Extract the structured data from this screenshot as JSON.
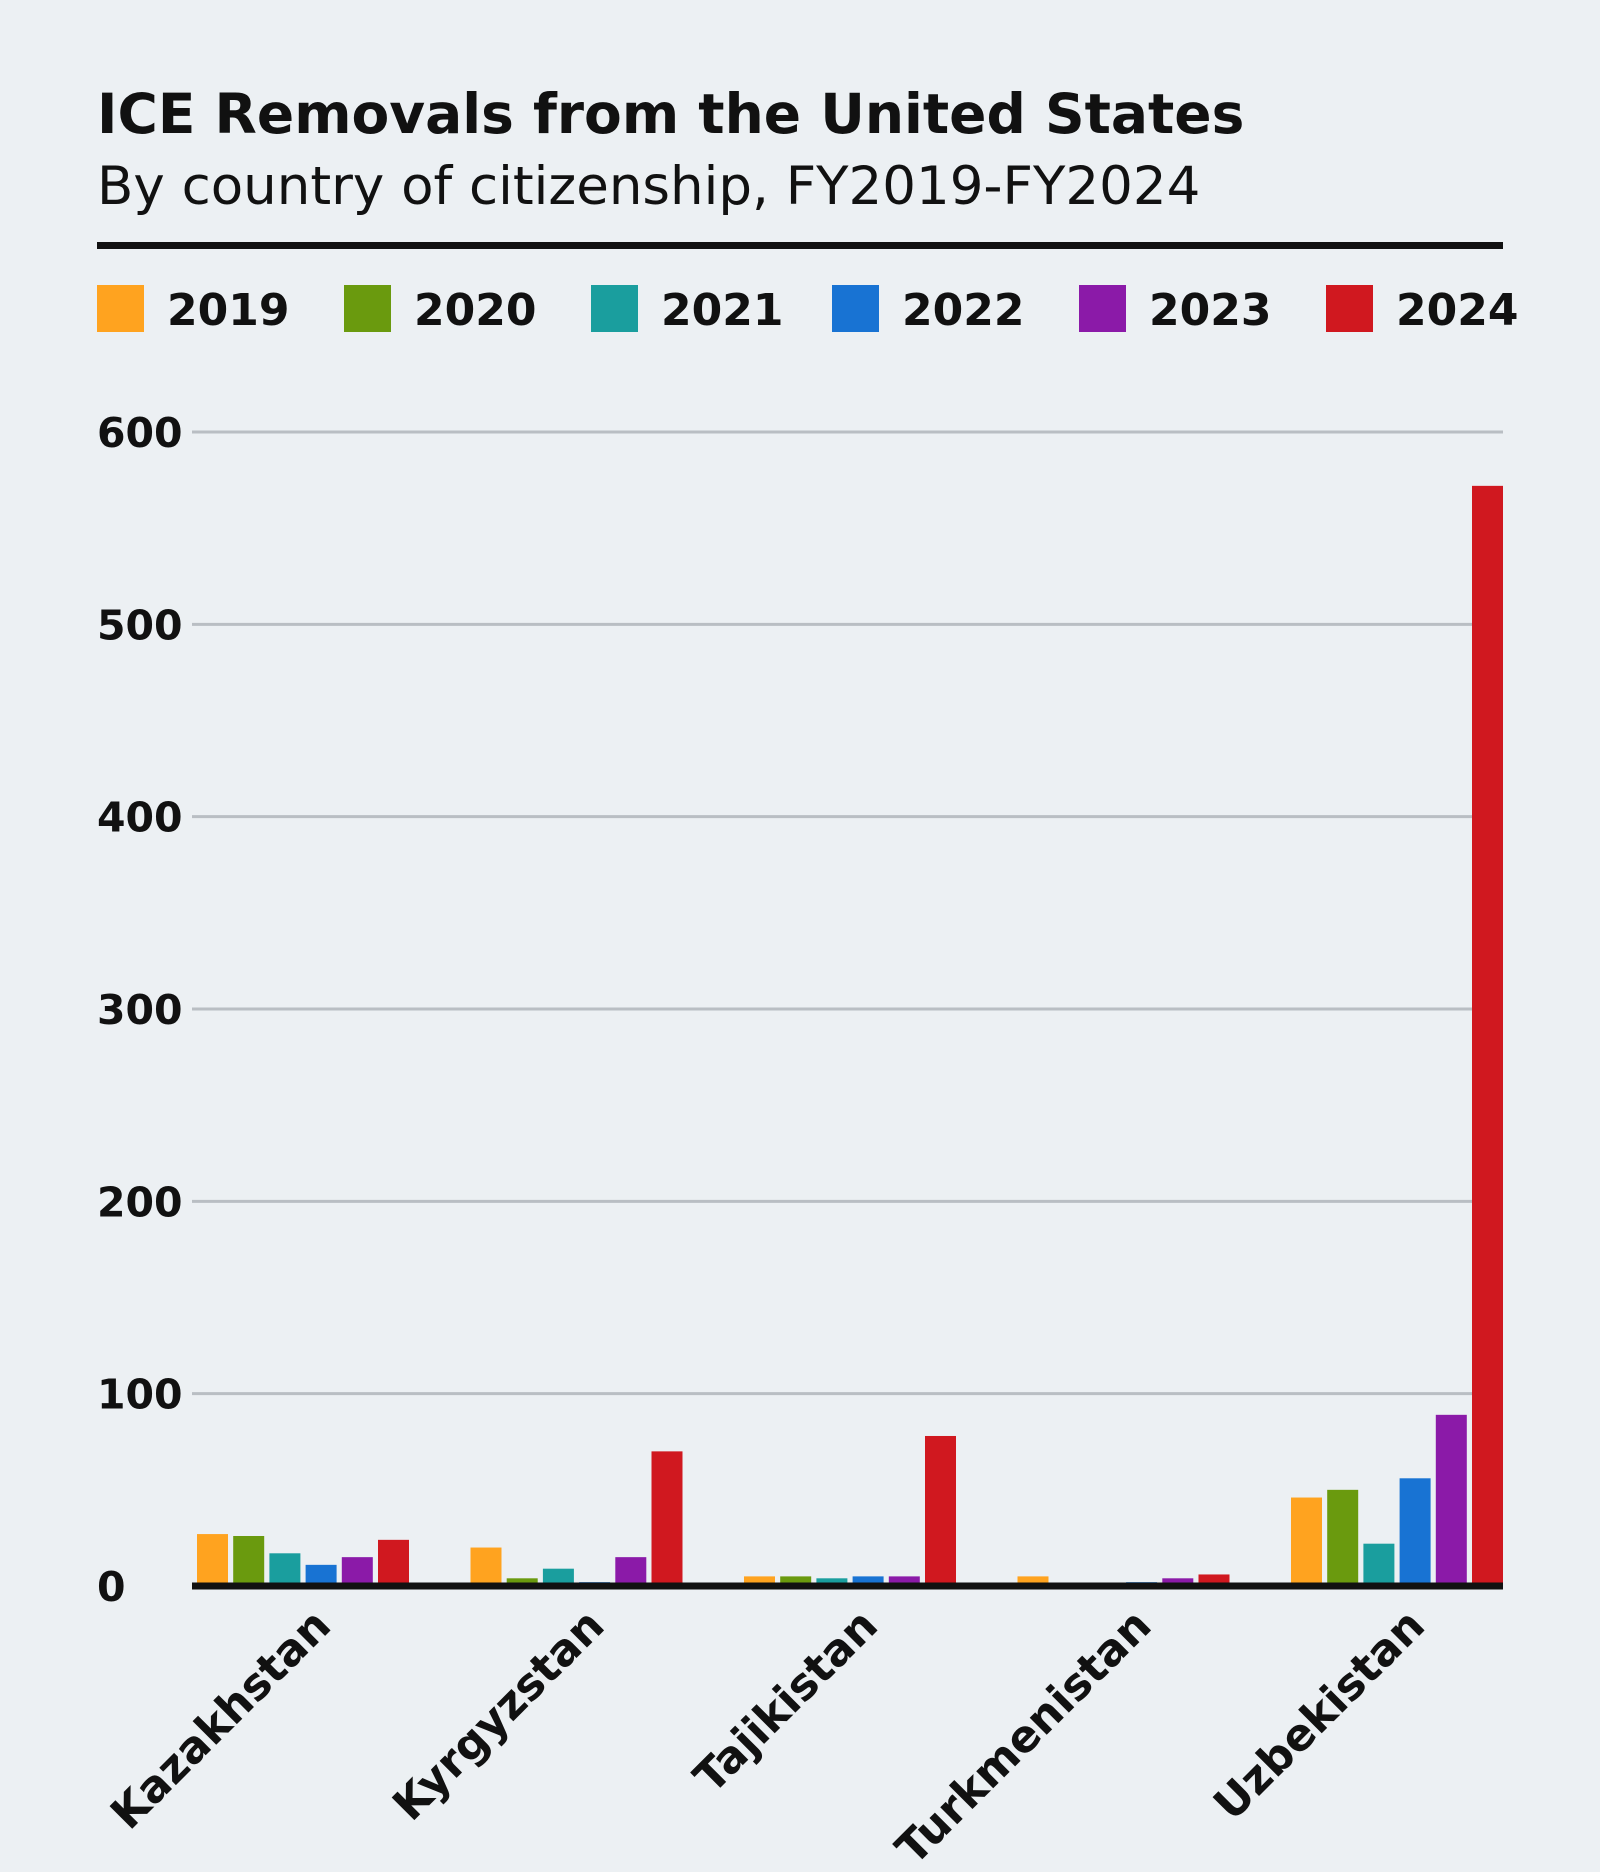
{
  "chart_data": {
    "type": "bar",
    "title": "ICE Removals from the United States",
    "subtitle": "By country of citizenship, FY2019-FY2024",
    "xlabel": "",
    "ylabel": "",
    "categories": [
      "Kazakhstan",
      "Kyrgyzstan",
      "Tajikistan",
      "Turkmenistan",
      "Uzbekistan"
    ],
    "series": [
      {
        "name": "2019",
        "color": "#ffa31f",
        "values": [
          27,
          20,
          5,
          5,
          46
        ]
      },
      {
        "name": "2020",
        "color": "#6a9a0e",
        "values": [
          26,
          4,
          5,
          0,
          50
        ]
      },
      {
        "name": "2021",
        "color": "#1a9e9e",
        "values": [
          17,
          9,
          4,
          0,
          22
        ]
      },
      {
        "name": "2022",
        "color": "#1873d3",
        "values": [
          11,
          2,
          5,
          2,
          56
        ]
      },
      {
        "name": "2023",
        "color": "#8b1aa8",
        "values": [
          15,
          15,
          5,
          4,
          89
        ]
      },
      {
        "name": "2024",
        "color": "#d0181f",
        "values": [
          24,
          70,
          78,
          6,
          572
        ]
      }
    ],
    "ylim": [
      0,
      600
    ],
    "yticks": [
      0,
      100,
      200,
      300,
      400,
      500,
      600
    ],
    "grid": true,
    "legend": "top"
  }
}
